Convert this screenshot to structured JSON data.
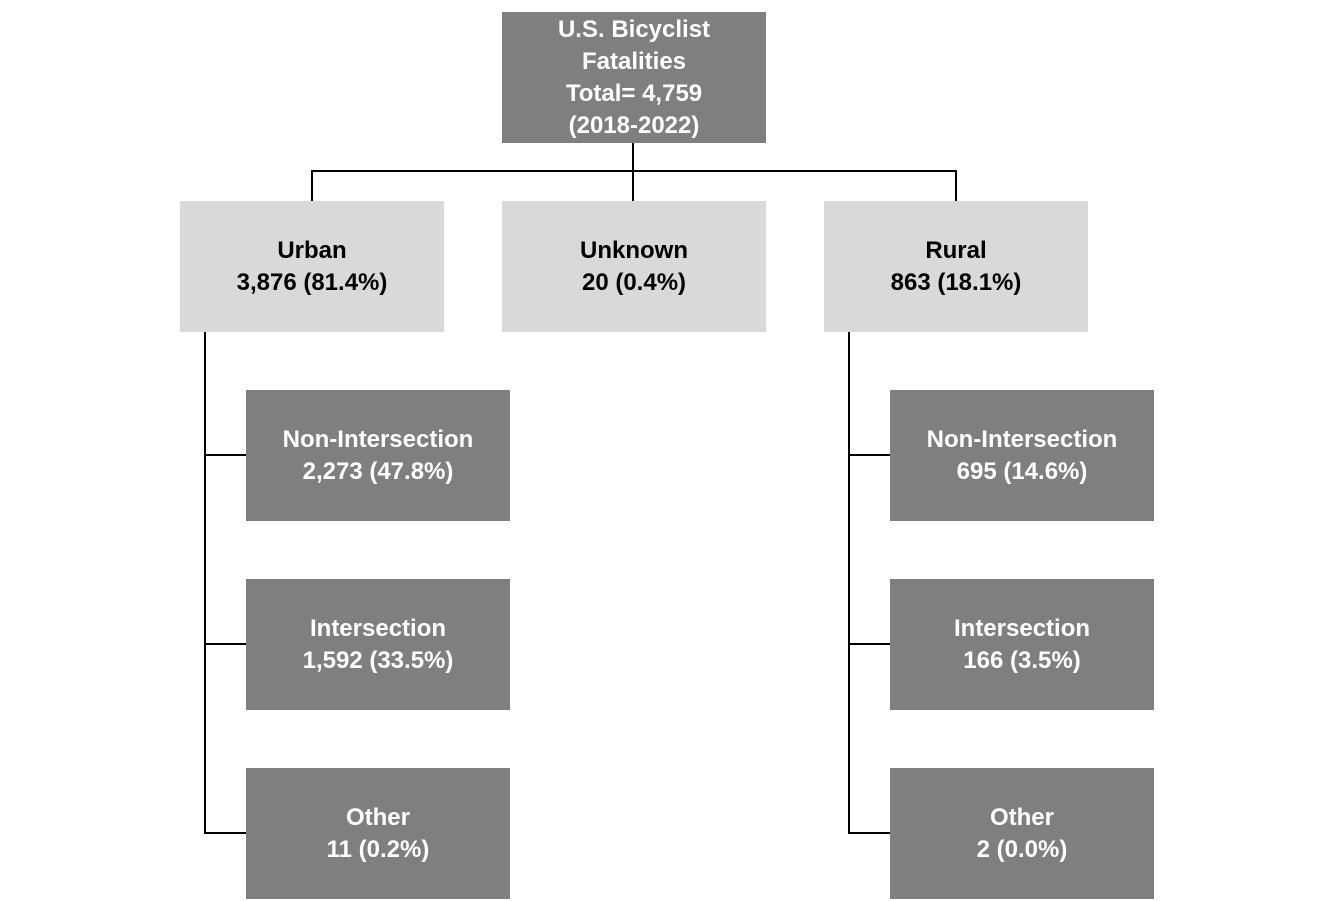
{
  "root": {
    "line1": "U.S. Bicyclist",
    "line2": "Fatalities",
    "line3": "Total= 4,759",
    "line4": "(2018-2022)"
  },
  "categories": {
    "urban": {
      "label": "Urban",
      "value": "3,876 (81.4%)"
    },
    "unknown": {
      "label": "Unknown",
      "value": "20 (0.4%)"
    },
    "rural": {
      "label": "Rural",
      "value": "863 (18.1%)"
    }
  },
  "urban_children": [
    {
      "label": "Non-Intersection",
      "value": "2,273 (47.8%)"
    },
    {
      "label": "Intersection",
      "value": "1,592 (33.5%)"
    },
    {
      "label": "Other",
      "value": "11 (0.2%)"
    }
  ],
  "rural_children": [
    {
      "label": "Non-Intersection",
      "value": "695 (14.6%)"
    },
    {
      "label": "Intersection",
      "value": "166 (3.5%)"
    },
    {
      "label": "Other",
      "value": "2 (0.0%)"
    }
  ],
  "colors": {
    "dark_box": "#7f7f7f",
    "light_box": "#d9d9d9",
    "connector": "#000000"
  }
}
